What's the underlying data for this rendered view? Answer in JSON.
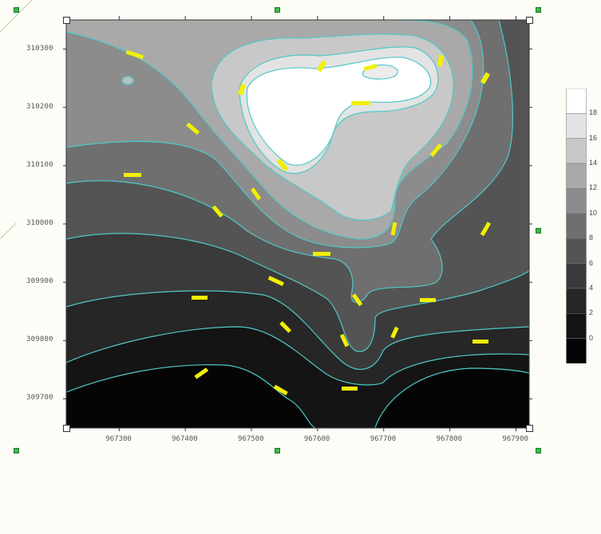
{
  "chart_data": {
    "type": "contour",
    "xlim": [
      967220,
      967920
    ],
    "ylim": [
      309650,
      310350
    ],
    "x_ticks": [
      967300,
      967400,
      967500,
      967600,
      967700,
      967800,
      967900
    ],
    "x_tick_labels": [
      "967300",
      "967400",
      "967500",
      "967600",
      "967700",
      "967800",
      "967900"
    ],
    "y_ticks": [
      309700,
      309800,
      309900,
      310000,
      310100,
      310200,
      310300
    ],
    "y_tick_labels": [
      "309700",
      "309800",
      "309900",
      "310000",
      "310100",
      "310200",
      "310300"
    ],
    "levels": [
      0,
      2,
      4,
      6,
      8,
      10,
      12,
      14,
      16,
      18
    ],
    "legend_labels": [
      "18",
      "16",
      "14",
      "12",
      "10",
      "8",
      "6",
      "4",
      "2",
      "0"
    ],
    "colormap": [
      "#050505",
      "#141414",
      "#262626",
      "#3a3a3a",
      "#545454",
      "#6f6f6f",
      "#8c8c8c",
      "#a9a9a9",
      "#c8c8c8",
      "#e3e3e3",
      "#ffffff"
    ],
    "contour_line_color": "#4fc8c8",
    "contour_label_color": "#f0f000",
    "legend_position": "right"
  }
}
